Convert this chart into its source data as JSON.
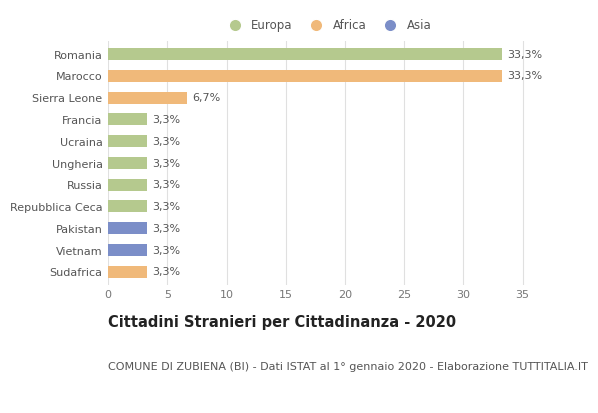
{
  "categories": [
    "Romania",
    "Marocco",
    "Sierra Leone",
    "Francia",
    "Ucraina",
    "Ungheria",
    "Russia",
    "Repubblica Ceca",
    "Pakistan",
    "Vietnam",
    "Sudafrica"
  ],
  "values": [
    33.3,
    33.3,
    6.7,
    3.3,
    3.3,
    3.3,
    3.3,
    3.3,
    3.3,
    3.3,
    3.3
  ],
  "labels": [
    "33,3%",
    "33,3%",
    "6,7%",
    "3,3%",
    "3,3%",
    "3,3%",
    "3,3%",
    "3,3%",
    "3,3%",
    "3,3%",
    "3,3%"
  ],
  "colors": [
    "#b5c98e",
    "#f0b97a",
    "#f0b97a",
    "#b5c98e",
    "#b5c98e",
    "#b5c98e",
    "#b5c98e",
    "#b5c98e",
    "#7b8ec8",
    "#7b8ec8",
    "#f0b97a"
  ],
  "xlim": [
    0,
    37
  ],
  "xticks": [
    0,
    5,
    10,
    15,
    20,
    25,
    30,
    35
  ],
  "legend_labels": [
    "Europa",
    "Africa",
    "Asia"
  ],
  "legend_colors": [
    "#b5c98e",
    "#f0b97a",
    "#7b8ec8"
  ],
  "title": "Cittadini Stranieri per Cittadinanza - 2020",
  "subtitle": "COMUNE DI ZUBIENA (BI) - Dati ISTAT al 1° gennaio 2020 - Elaborazione TUTTITALIA.IT",
  "background_color": "#ffffff",
  "grid_color": "#e0e0e0",
  "bar_height": 0.55,
  "title_fontsize": 10.5,
  "subtitle_fontsize": 8,
  "label_fontsize": 8,
  "tick_fontsize": 8,
  "legend_fontsize": 8.5
}
